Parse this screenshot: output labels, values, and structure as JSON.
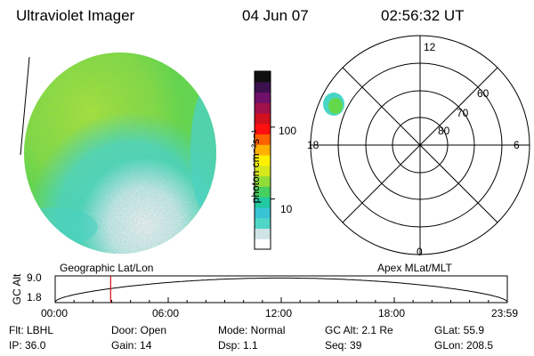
{
  "header": {
    "title": "Ultraviolet Imager",
    "date": "04 Jun 07",
    "time": "02:56:32 UT"
  },
  "colorbar": {
    "label": "photon cm⁻²s⁻¹",
    "ticks": [
      "100",
      "10"
    ],
    "tick_values": [
      100,
      10
    ],
    "range": [
      2,
      600
    ],
    "scale": "log",
    "colors": [
      "#ffffff",
      "#cfe3e6",
      "#4fd6c6",
      "#39c4d6",
      "#22c8a0",
      "#48d060",
      "#90dc38",
      "#d6e81c",
      "#fff200",
      "#ffb000",
      "#ff6000",
      "#ff1010",
      "#d0101e",
      "#a0104a",
      "#70106a",
      "#3c104c",
      "#101010"
    ]
  },
  "image": {
    "colors": {
      "green": "#63d84a",
      "yellow_green": "#9fe23a",
      "cyan": "#48d6c6",
      "pale": "#e2ebee"
    }
  },
  "polar_plot": {
    "lat_labels": [
      "80",
      "70",
      "60"
    ],
    "mlt_labels": {
      "top": "12",
      "left": "18",
      "right": "6",
      "bottom": "0"
    }
  },
  "timeline": {
    "ylabel": "GC Alt",
    "y_ticks": [
      "9.0",
      "1.8"
    ],
    "ylim": [
      1.8,
      9.0
    ],
    "left_caption": "Geographic Lat/Lon",
    "right_caption": "Apex MLat/MLT",
    "x_ticks": [
      "00:00",
      "06:00",
      "12:00",
      "18:00",
      "23:59"
    ],
    "marker_time": "02:56:32"
  },
  "info": {
    "flt": "Flt: LBHL",
    "ip": "IP: 36.0",
    "door": "Door: Open",
    "gain": "Gain: 14",
    "mode": "Mode: Normal",
    "dsp": "Dsp:     1.1",
    "gc_alt": "GC Alt: 2.1 Re",
    "seq": "Seq: 39",
    "glat": "GLat:  55.9",
    "glon": "GLon: 208.5"
  }
}
